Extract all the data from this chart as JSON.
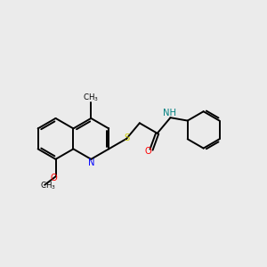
{
  "background_color": "#ebebeb",
  "bond_color": "#000000",
  "N_color": "#0000ff",
  "O_color": "#ff0000",
  "S_color": "#cccc00",
  "NH_color": "#008080",
  "line_width": 1.4,
  "figsize": [
    3.0,
    3.0
  ],
  "dpi": 100,
  "xlim": [
    0.0,
    10.0
  ],
  "ylim": [
    1.5,
    9.5
  ]
}
